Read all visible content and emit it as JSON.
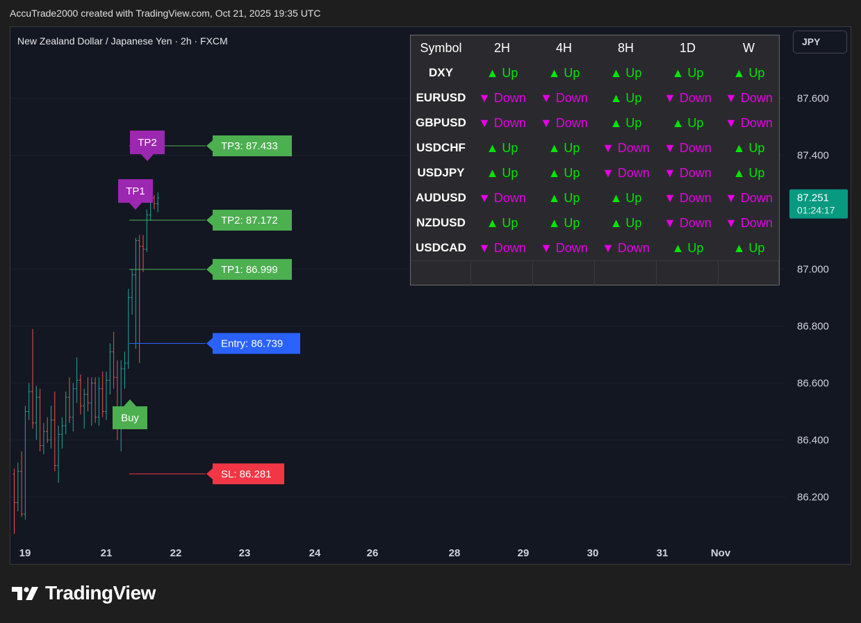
{
  "header": {
    "attribution": "AccuTrade2000 created with TradingView.com, Oct 21, 2025 19:35 UTC",
    "symbol_title": "New Zealand Dollar / Japanese Yen · 2h · FXCM",
    "currency": "JPY"
  },
  "price_scale": {
    "ticks": [
      "87.600",
      "87.400",
      "87.000",
      "86.800",
      "86.600",
      "86.400",
      "86.200"
    ],
    "last_price": "87.251",
    "countdown": "01:24:17"
  },
  "colors": {
    "up": "#26a69a",
    "down": "#ef5350",
    "tp": "#4caf50",
    "entry": "#2962ff",
    "sl": "#f23645",
    "tp_marker": "#9c27b0",
    "trend_up": "#00e600",
    "trend_down": "#e600e6",
    "last_price_bg": "#089981"
  },
  "chart_data": {
    "type": "bar",
    "style": "ohlc",
    "x_ticks": [
      "19",
      "21",
      "22",
      "23",
      "24",
      "26",
      "28",
      "29",
      "30",
      "31",
      "Nov"
    ],
    "ylim": [
      86.05,
      87.8
    ],
    "candles": [
      [
        86.28,
        86.3,
        86.07,
        86.18
      ],
      [
        86.18,
        86.32,
        86.15,
        86.29
      ],
      [
        86.29,
        86.36,
        86.13,
        86.14
      ],
      [
        86.14,
        86.52,
        86.12,
        86.5
      ],
      [
        86.5,
        86.6,
        86.47,
        86.57
      ],
      [
        86.57,
        86.79,
        86.44,
        86.46
      ],
      [
        86.46,
        86.59,
        86.4,
        86.55
      ],
      [
        86.55,
        86.58,
        86.36,
        86.38
      ],
      [
        86.38,
        86.46,
        86.35,
        86.43
      ],
      [
        86.43,
        86.48,
        86.39,
        86.4
      ],
      [
        86.4,
        86.52,
        86.37,
        86.47
      ],
      [
        86.47,
        86.57,
        86.29,
        86.31
      ],
      [
        86.31,
        86.45,
        86.25,
        86.42
      ],
      [
        86.42,
        86.48,
        86.37,
        86.45
      ],
      [
        86.45,
        86.57,
        86.42,
        86.55
      ],
      [
        86.55,
        86.62,
        86.46,
        86.48
      ],
      [
        86.48,
        86.6,
        86.43,
        86.58
      ],
      [
        86.58,
        86.69,
        86.53,
        86.61
      ],
      [
        86.61,
        86.63,
        86.49,
        86.52
      ],
      [
        86.52,
        86.58,
        86.44,
        86.56
      ],
      [
        86.56,
        86.62,
        86.5,
        86.53
      ],
      [
        86.53,
        86.62,
        86.45,
        86.6
      ],
      [
        86.6,
        86.62,
        86.46,
        86.48
      ],
      [
        86.48,
        86.62,
        86.45,
        86.58
      ],
      [
        86.58,
        86.64,
        86.48,
        86.5
      ],
      [
        86.5,
        86.64,
        86.47,
        86.61
      ],
      [
        86.61,
        86.74,
        86.56,
        86.71
      ],
      [
        86.71,
        86.78,
        86.58,
        86.62
      ],
      [
        86.62,
        86.68,
        86.4,
        86.45
      ],
      [
        86.45,
        86.68,
        86.36,
        86.65
      ],
      [
        86.65,
        86.71,
        86.58,
        86.67
      ],
      [
        86.67,
        86.93,
        86.65,
        86.9
      ],
      [
        86.9,
        87.0,
        86.84,
        86.98
      ],
      [
        86.98,
        87.11,
        86.72,
        87.1
      ],
      [
        87.1,
        87.12,
        86.67,
        87.08
      ],
      [
        87.08,
        87.12,
        86.99,
        87.07
      ],
      [
        87.07,
        87.21,
        87.06,
        87.19
      ],
      [
        87.19,
        87.28,
        87.17,
        87.25
      ],
      [
        87.25,
        87.26,
        87.21,
        87.23
      ],
      [
        87.23,
        87.27,
        87.2,
        87.25
      ]
    ],
    "levels": [
      {
        "key": "tp3",
        "label": "TP3: 87.433",
        "value": 87.433
      },
      {
        "key": "tp2",
        "label": "TP2: 87.172",
        "value": 87.172
      },
      {
        "key": "tp1",
        "label": "TP1: 86.999",
        "value": 86.999
      },
      {
        "key": "entry",
        "label": "Entry: 86.739",
        "value": 86.739
      },
      {
        "key": "sl",
        "label": "SL: 86.281",
        "value": 86.281
      }
    ],
    "markers": [
      {
        "key": "tp2_hit",
        "label": "TP2"
      },
      {
        "key": "tp1_hit",
        "label": "TP1"
      },
      {
        "key": "buy",
        "label": "Buy"
      }
    ]
  },
  "trend_table": {
    "headers": [
      "Symbol",
      "2H",
      "4H",
      "8H",
      "1D",
      "W"
    ],
    "rows": [
      {
        "symbol": "DXY",
        "trends": [
          "▲ Up",
          "▲ Up",
          "▲ Up",
          "▲ Up",
          "▲ Up"
        ]
      },
      {
        "symbol": "EURUSD",
        "trends": [
          "▼ Down",
          "▼ Down",
          "▲ Up",
          "▼ Down",
          "▼ Down"
        ]
      },
      {
        "symbol": "GBPUSD",
        "trends": [
          "▼ Down",
          "▼ Down",
          "▲ Up",
          "▲ Up",
          "▼ Down"
        ]
      },
      {
        "symbol": "USDCHF",
        "trends": [
          "▲ Up",
          "▲ Up",
          "▼ Down",
          "▼ Down",
          "▲ Up"
        ]
      },
      {
        "symbol": "USDJPY",
        "trends": [
          "▲ Up",
          "▲ Up",
          "▼ Down",
          "▼ Down",
          "▲ Up"
        ]
      },
      {
        "symbol": "AUDUSD",
        "trends": [
          "▼ Down",
          "▲ Up",
          "▲ Up",
          "▼ Down",
          "▼ Down"
        ]
      },
      {
        "symbol": "NZDUSD",
        "trends": [
          "▲ Up",
          "▲ Up",
          "▲ Up",
          "▼ Down",
          "▼ Down"
        ]
      },
      {
        "symbol": "USDCAD",
        "trends": [
          "▼ Down",
          "▼ Down",
          "▼ Down",
          "▲ Up",
          "▲ Up"
        ]
      }
    ]
  },
  "footer": {
    "brand": "TradingView"
  }
}
